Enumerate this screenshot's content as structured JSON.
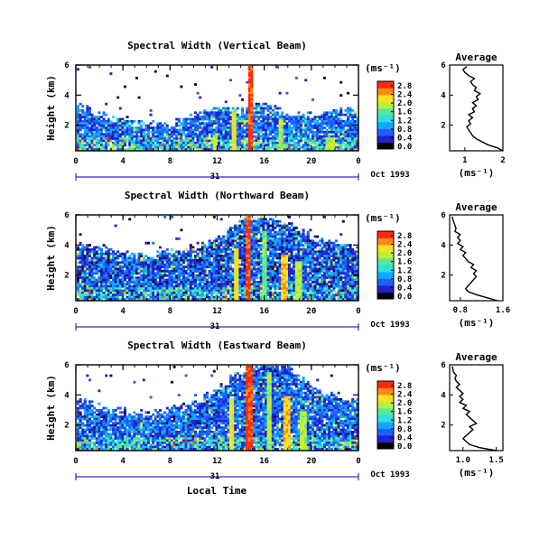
{
  "figure": {
    "xlabel_bottom": "Local Time",
    "date_label": "Oct 1993",
    "day_label": "31",
    "x_ticks": [
      "0",
      "4",
      "8",
      "12",
      "16",
      "20",
      "0"
    ],
    "y_label": "Height (km)",
    "y_ticks": [
      "2",
      "4",
      "6"
    ],
    "colorbar_unit": "(ms⁻¹)",
    "colorbar_ticks": [
      "0.0",
      "0.4",
      "0.8",
      "1.2",
      "1.6",
      "2.0",
      "2.4",
      "2.8"
    ],
    "avg_title": "Average",
    "avg_xlabel": "(ms⁻¹)"
  },
  "colors": {
    "scale": [
      "#111133",
      "#2222cc",
      "#1e5fff",
      "#12a8ff",
      "#2fe0e0",
      "#55e89a",
      "#b8f03a",
      "#ffe020",
      "#ff8a10",
      "#ff2a10"
    ],
    "axis": "#000000",
    "date_axis": "#2a2ad0"
  },
  "chart_data": [
    {
      "type": "heatmap",
      "title": "Spectral Width (Vertical Beam)",
      "xlabel": "",
      "ylabel": "Height (km)",
      "xlim": [
        0,
        24
      ],
      "ylim": [
        0.3,
        6.0
      ],
      "zlim": [
        0.0,
        2.8
      ],
      "colorbar_ticks": [
        0.0,
        0.4,
        0.8,
        1.2,
        1.6,
        2.0,
        2.4,
        2.8
      ],
      "cover_top_km": [
        [
          0,
          3.2
        ],
        [
          2,
          2.4
        ],
        [
          4,
          2.0
        ],
        [
          6,
          1.9
        ],
        [
          8,
          1.8
        ],
        [
          10,
          2.4
        ],
        [
          12,
          3.0
        ],
        [
          14,
          2.8
        ],
        [
          16,
          3.2
        ],
        [
          18,
          2.6
        ],
        [
          20,
          2.5
        ],
        [
          22,
          2.8
        ],
        [
          24,
          2.6
        ]
      ],
      "background_level": 0.6,
      "spikes": [
        {
          "time": 14.8,
          "width": 0.45,
          "top_km": 6.0,
          "level": 2.8
        },
        {
          "time": 13.3,
          "width": 0.3,
          "top_km": 3.0,
          "level": 2.2
        },
        {
          "time": 17.4,
          "width": 0.4,
          "top_km": 2.6,
          "level": 2.0
        },
        {
          "time": 11.8,
          "width": 0.4,
          "top_km": 1.4,
          "level": 2.2
        },
        {
          "time": 21.5,
          "width": 0.8,
          "top_km": 1.3,
          "level": 2.0
        }
      ],
      "average_profile": {
        "xlabel": "(ms⁻¹)",
        "x_ticks": [
          "1",
          "2"
        ],
        "xlim": [
          0.6,
          2.0
        ],
        "x": [
          2.0,
          1.85,
          1.6,
          1.45,
          1.3,
          1.2,
          1.15,
          1.1,
          1.05,
          1.15,
          1.1,
          1.2,
          1.1,
          1.25,
          1.2,
          1.3,
          1.2,
          1.35,
          1.3,
          1.4,
          1.25,
          1.3,
          1.2,
          1.15,
          1.25,
          1.1,
          1.0,
          0.95,
          1.05
        ],
        "y": [
          0.3,
          0.5,
          0.7,
          0.9,
          1.1,
          1.3,
          1.5,
          1.7,
          1.9,
          2.1,
          2.3,
          2.5,
          2.7,
          2.9,
          3.1,
          3.3,
          3.5,
          3.7,
          3.9,
          4.1,
          4.3,
          4.5,
          4.7,
          4.9,
          5.1,
          5.3,
          5.5,
          5.7,
          5.9
        ]
      }
    },
    {
      "type": "heatmap",
      "title": "Spectral Width (Northward Beam)",
      "xlabel": "",
      "ylabel": "Height (km)",
      "xlim": [
        0,
        24
      ],
      "ylim": [
        0.3,
        6.0
      ],
      "zlim": [
        0.0,
        2.8
      ],
      "colorbar_ticks": [
        0.0,
        0.4,
        0.8,
        1.2,
        1.6,
        2.0,
        2.4,
        2.8
      ],
      "cover_top_km": [
        [
          0,
          3.8
        ],
        [
          2,
          3.6
        ],
        [
          4,
          3.2
        ],
        [
          6,
          3.0
        ],
        [
          8,
          3.4
        ],
        [
          10,
          3.6
        ],
        [
          12,
          4.2
        ],
        [
          14,
          5.4
        ],
        [
          16,
          5.6
        ],
        [
          18,
          5.2
        ],
        [
          20,
          4.2
        ],
        [
          22,
          4.0
        ],
        [
          24,
          3.6
        ]
      ],
      "background_level": 0.4,
      "spikes": [
        {
          "time": 14.6,
          "width": 0.45,
          "top_km": 6.0,
          "level": 2.8
        },
        {
          "time": 13.6,
          "width": 0.35,
          "top_km": 3.8,
          "level": 2.2
        },
        {
          "time": 16.0,
          "width": 0.4,
          "top_km": 5.0,
          "level": 1.8
        },
        {
          "time": 17.6,
          "width": 0.5,
          "top_km": 3.4,
          "level": 2.4
        },
        {
          "time": 18.8,
          "width": 0.5,
          "top_km": 3.0,
          "level": 2.0
        }
      ],
      "average_profile": {
        "xlabel": "(ms⁻¹)",
        "x_ticks": [
          "0.8",
          "1.6"
        ],
        "xlim": [
          0.6,
          1.6
        ],
        "x": [
          1.5,
          1.3,
          1.1,
          0.95,
          0.9,
          0.95,
          1.0,
          1.05,
          1.1,
          1.05,
          1.1,
          1.0,
          1.05,
          0.95,
          0.9,
          0.85,
          0.9,
          0.8,
          0.85,
          0.75,
          0.8,
          0.75,
          0.8,
          0.7,
          0.72,
          0.7,
          0.68,
          0.66,
          0.65
        ],
        "y": [
          0.3,
          0.5,
          0.7,
          0.9,
          1.1,
          1.3,
          1.5,
          1.7,
          1.9,
          2.1,
          2.3,
          2.5,
          2.7,
          2.9,
          3.1,
          3.3,
          3.5,
          3.7,
          3.9,
          4.1,
          4.3,
          4.5,
          4.7,
          4.9,
          5.1,
          5.3,
          5.5,
          5.7,
          5.9
        ]
      }
    },
    {
      "type": "heatmap",
      "title": "Spectral Width (Eastward Beam)",
      "xlabel": "Local Time",
      "ylabel": "Height (km)",
      "xlim": [
        0,
        24
      ],
      "ylim": [
        0.3,
        6.0
      ],
      "zlim": [
        0.0,
        2.8
      ],
      "colorbar_ticks": [
        0.0,
        0.4,
        0.8,
        1.2,
        1.6,
        2.0,
        2.4,
        2.8
      ],
      "cover_top_km": [
        [
          0,
          3.4
        ],
        [
          2,
          3.0
        ],
        [
          4,
          2.6
        ],
        [
          6,
          2.6
        ],
        [
          8,
          2.8
        ],
        [
          10,
          3.2
        ],
        [
          12,
          4.2
        ],
        [
          14,
          5.4
        ],
        [
          16,
          6.0
        ],
        [
          18,
          5.6
        ],
        [
          20,
          4.2
        ],
        [
          22,
          3.6
        ],
        [
          24,
          3.4
        ]
      ],
      "background_level": 0.5,
      "spikes": [
        {
          "time": 14.6,
          "width": 0.5,
          "top_km": 6.0,
          "level": 2.8
        },
        {
          "time": 13.2,
          "width": 0.35,
          "top_km": 3.8,
          "level": 2.2
        },
        {
          "time": 16.4,
          "width": 0.4,
          "top_km": 5.6,
          "level": 2.0
        },
        {
          "time": 17.8,
          "width": 0.5,
          "top_km": 4.0,
          "level": 2.4
        },
        {
          "time": 19.2,
          "width": 0.45,
          "top_km": 3.0,
          "level": 2.0
        }
      ],
      "average_profile": {
        "xlabel": "(ms⁻¹)",
        "x_ticks": [
          "1.0",
          "1.5"
        ],
        "xlim": [
          0.8,
          1.6
        ],
        "x": [
          1.5,
          1.25,
          1.1,
          1.05,
          1.0,
          1.05,
          1.1,
          1.15,
          1.1,
          1.2,
          1.15,
          1.1,
          1.05,
          1.1,
          1.0,
          1.05,
          0.95,
          1.0,
          0.95,
          1.0,
          0.95,
          0.9,
          0.95,
          0.9,
          0.88,
          0.9,
          0.86,
          0.85,
          0.84
        ],
        "y": [
          0.3,
          0.5,
          0.7,
          0.9,
          1.1,
          1.3,
          1.5,
          1.7,
          1.9,
          2.1,
          2.3,
          2.5,
          2.7,
          2.9,
          3.1,
          3.3,
          3.5,
          3.7,
          3.9,
          4.1,
          4.3,
          4.5,
          4.7,
          4.9,
          5.1,
          5.3,
          5.5,
          5.7,
          5.9
        ]
      }
    }
  ]
}
